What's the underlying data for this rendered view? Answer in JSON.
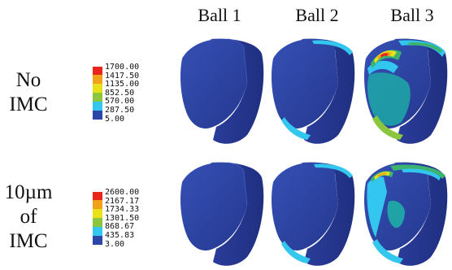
{
  "columns": [
    {
      "label": "Ball 1"
    },
    {
      "label": "Ball 2"
    },
    {
      "label": "Ball 3"
    }
  ],
  "rows": [
    {
      "label_lines": [
        "No",
        "IMC"
      ],
      "legend": {
        "values": [
          "1700.00",
          "1417.50",
          "1135.00",
          "852.50",
          "570.00",
          "287.50",
          "5.00"
        ],
        "colors": [
          "#e8261c",
          "#f2a11a",
          "#e8e019",
          "#8cc63f",
          "#3cb371",
          "#33c6ee",
          "#2a47a8"
        ]
      }
    },
    {
      "label_lines": [
        "10µm",
        "of",
        "IMC"
      ],
      "legend": {
        "values": [
          "2600.00",
          "2167.17",
          "1734.33",
          "1301.50",
          "868.67",
          "435.83",
          "3.00"
        ],
        "colors": [
          "#e8261c",
          "#f2a11a",
          "#e8e019",
          "#8cc63f",
          "#3cb371",
          "#33c6ee",
          "#2a47a8"
        ]
      }
    }
  ],
  "palette": {
    "dark_blue": "#2d3f9a",
    "face_blue": "#2e43a6",
    "cyan": "#33c6ee",
    "teal": "#1fa3a7",
    "green": "#3cb371",
    "yellow": "#e8e019",
    "orange": "#f2a11a",
    "red": "#e8261c"
  }
}
